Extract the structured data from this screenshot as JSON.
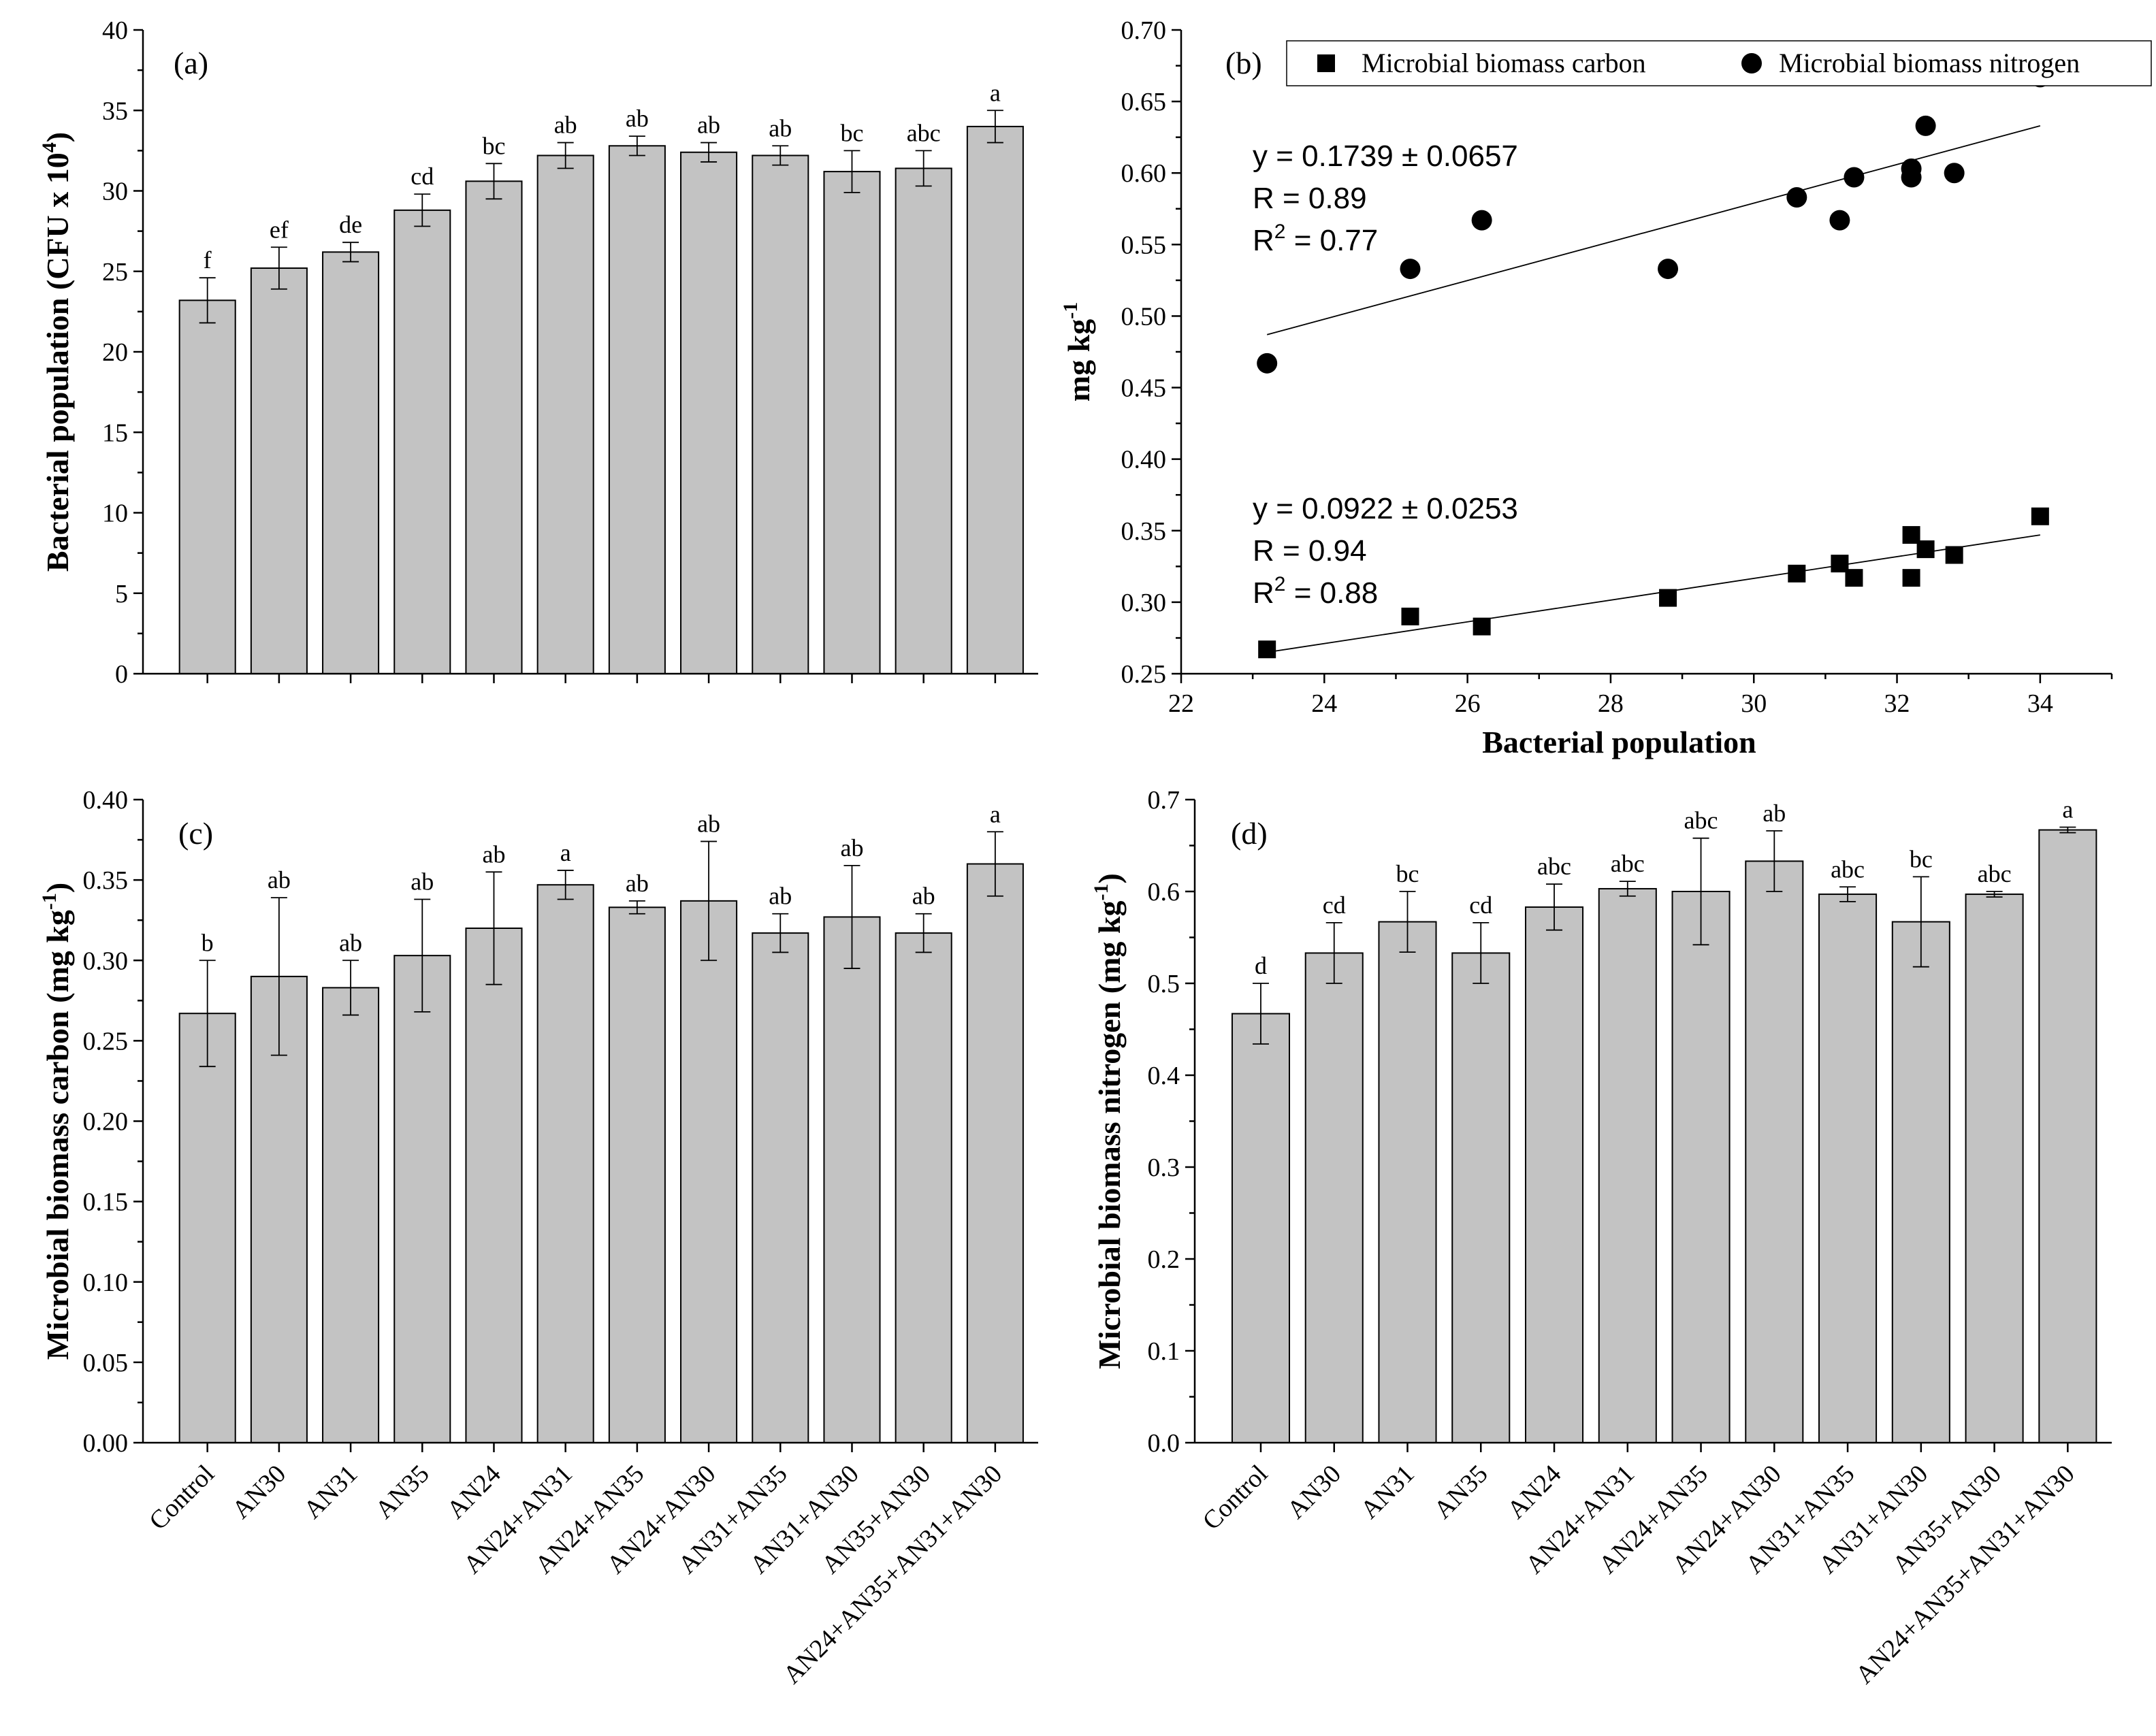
{
  "chart_data": [
    {
      "id": "a",
      "type": "bar",
      "panel_label": "(a)",
      "title": "",
      "xlabel": "",
      "ylabel_main": "Bacterial population (CFU x 10",
      "ylabel_sup": "4",
      "ylabel_tail": ")",
      "ylim": [
        0,
        40
      ],
      "yticks": [
        0,
        5,
        10,
        15,
        20,
        25,
        30,
        35,
        40
      ],
      "ytick_labels": [
        "0",
        "5",
        "10",
        "15",
        "20",
        "25",
        "30",
        "35",
        "40"
      ],
      "categories": [
        "Control",
        "AN30",
        "AN31",
        "AN35",
        "AN24",
        "AN24+AN31",
        "AN24+AN35",
        "AN24+AN30",
        "AN31+AN35",
        "AN31+AN30",
        "AN35+AN30",
        "AN24+AN35+AN31+AN30"
      ],
      "values": [
        23.2,
        25.2,
        26.2,
        28.8,
        30.6,
        32.2,
        32.8,
        32.4,
        32.2,
        31.2,
        31.4,
        34.0
      ],
      "errors": [
        1.4,
        1.3,
        0.6,
        1.0,
        1.1,
        0.8,
        0.6,
        0.6,
        0.6,
        1.3,
        1.1,
        1.0
      ],
      "letters": [
        "f",
        "ef",
        "de",
        "cd",
        "bc",
        "ab",
        "ab",
        "ab",
        "ab",
        "bc",
        "abc",
        "a"
      ],
      "show_xtick_labels": false
    },
    {
      "id": "b",
      "type": "scatter",
      "panel_label": "(b)",
      "title": "",
      "xlabel": "Bacterial population",
      "ylabel_main": "mg kg",
      "ylabel_sup": "-1",
      "ylabel_tail": "",
      "xlim": [
        22,
        35
      ],
      "xticks": [
        22,
        24,
        26,
        28,
        30,
        32,
        34
      ],
      "xtick_labels": [
        "22",
        "24",
        "26",
        "28",
        "30",
        "32",
        "34"
      ],
      "ylim": [
        0.25,
        0.7
      ],
      "yticks": [
        0.25,
        0.3,
        0.35,
        0.4,
        0.45,
        0.5,
        0.55,
        0.6,
        0.65,
        0.7
      ],
      "ytick_labels": [
        "0.25",
        "0.30",
        "0.35",
        "0.40",
        "0.45",
        "0.50",
        "0.55",
        "0.60",
        "0.65",
        "0.70"
      ],
      "legend_position": "top-right",
      "series": [
        {
          "name": "Microbial biomass carbon",
          "marker": "square",
          "x": [
            23.2,
            25.2,
            26.2,
            28.8,
            30.6,
            31.2,
            31.4,
            32.2,
            32.2,
            32.4,
            32.8,
            34.0
          ],
          "y": [
            0.267,
            0.29,
            0.283,
            0.303,
            0.32,
            0.327,
            0.317,
            0.347,
            0.317,
            0.337,
            0.333,
            0.36
          ],
          "fit": {
            "x": [
              23.2,
              34.0
            ],
            "y": [
              0.265,
              0.347
            ]
          },
          "equation": [
            "y = 0.0922 ± 0.0253",
            "R = 0.94",
            "R",
            "2",
            " = 0.88"
          ]
        },
        {
          "name": "Microbial biomass nitrogen",
          "marker": "circle",
          "x": [
            23.2,
            25.2,
            26.2,
            28.8,
            30.6,
            31.2,
            31.4,
            32.2,
            32.2,
            32.4,
            32.8,
            34.0
          ],
          "y": [
            0.467,
            0.533,
            0.567,
            0.533,
            0.583,
            0.567,
            0.597,
            0.603,
            0.597,
            0.633,
            0.6,
            0.667
          ],
          "fit": {
            "x": [
              23.2,
              34.0
            ],
            "y": [
              0.487,
              0.633
            ]
          },
          "equation": [
            "y = 0.1739 ± 0.0657",
            "R = 0.89",
            "R",
            "2",
            " = 0.77"
          ]
        }
      ]
    },
    {
      "id": "c",
      "type": "bar",
      "panel_label": "(c)",
      "title": "",
      "xlabel": "",
      "ylabel_main": "Microbial biomass carbon (mg kg",
      "ylabel_sup": "-1",
      "ylabel_tail": ")",
      "ylim": [
        0,
        0.4
      ],
      "yticks": [
        0,
        0.05,
        0.1,
        0.15,
        0.2,
        0.25,
        0.3,
        0.35,
        0.4
      ],
      "ytick_labels": [
        "0.00",
        "0.05",
        "0.10",
        "0.15",
        "0.20",
        "0.25",
        "0.30",
        "0.35",
        "0.40"
      ],
      "categories": [
        "Control",
        "AN30",
        "AN31",
        "AN35",
        "AN24",
        "AN24+AN31",
        "AN24+AN35",
        "AN24+AN30",
        "AN31+AN35",
        "AN31+AN30",
        "AN35+AN30",
        "AN24+AN35+AN31+AN30"
      ],
      "values": [
        0.267,
        0.29,
        0.283,
        0.303,
        0.32,
        0.347,
        0.333,
        0.337,
        0.317,
        0.327,
        0.317,
        0.36
      ],
      "errors": [
        0.033,
        0.049,
        0.017,
        0.035,
        0.035,
        0.009,
        0.004,
        0.037,
        0.012,
        0.032,
        0.012,
        0.02
      ],
      "letters": [
        "b",
        "ab",
        "ab",
        "ab",
        "ab",
        "a",
        "ab",
        "ab",
        "ab",
        "ab",
        "ab",
        "a"
      ],
      "show_xtick_labels": true
    },
    {
      "id": "d",
      "type": "bar",
      "panel_label": "(d)",
      "title": "",
      "xlabel": "",
      "ylabel_main": "Microbial biomass nitrogen (mg kg",
      "ylabel_sup": "-1",
      "ylabel_tail": ")",
      "ylim": [
        0,
        0.7
      ],
      "yticks": [
        0,
        0.1,
        0.2,
        0.3,
        0.4,
        0.5,
        0.6,
        0.7
      ],
      "ytick_labels": [
        "0.0",
        "0.1",
        "0.2",
        "0.3",
        "0.4",
        "0.5",
        "0.6",
        "0.7"
      ],
      "categories": [
        "Control",
        "AN30",
        "AN31",
        "AN35",
        "AN24",
        "AN24+AN31",
        "AN24+AN35",
        "AN24+AN30",
        "AN31+AN35",
        "AN31+AN30",
        "AN35+AN30",
        "AN24+AN35+AN31+AN30"
      ],
      "values": [
        0.467,
        0.533,
        0.567,
        0.533,
        0.583,
        0.603,
        0.6,
        0.633,
        0.597,
        0.567,
        0.597,
        0.667
      ],
      "errors": [
        0.033,
        0.033,
        0.033,
        0.033,
        0.025,
        0.008,
        0.058,
        0.033,
        0.008,
        0.049,
        0.003,
        0.003
      ],
      "letters": [
        "d",
        "cd",
        "bc",
        "cd",
        "abc",
        "abc",
        "abc",
        "ab",
        "abc",
        "bc",
        "abc",
        "a"
      ],
      "show_xtick_labels": true
    }
  ]
}
